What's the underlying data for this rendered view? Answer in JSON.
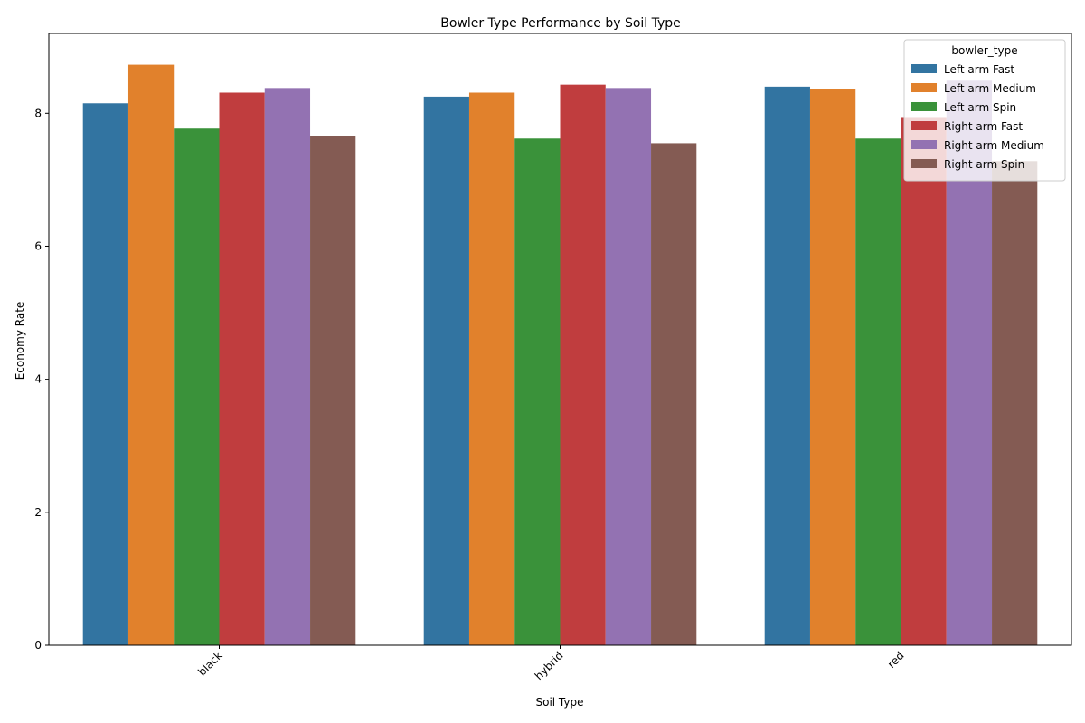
{
  "chart_data": {
    "type": "bar",
    "title": "Bowler Type Performance by Soil Type",
    "xlabel": "Soil Type",
    "ylabel": "Economy Rate",
    "categories": [
      "black",
      "hybrid",
      "red"
    ],
    "ylim": [
      0,
      9.2
    ],
    "yticks": [
      0,
      2,
      4,
      6,
      8
    ],
    "grid": false,
    "legend": {
      "title": "bowler_type",
      "placement": "top-right"
    },
    "series": [
      {
        "name": "Left arm Fast",
        "color": "#3274a1",
        "values": [
          8.15,
          8.25,
          8.4
        ]
      },
      {
        "name": "Left arm Medium",
        "color": "#e1812c",
        "values": [
          8.73,
          8.31,
          8.36
        ]
      },
      {
        "name": "Left arm Spin",
        "color": "#3a923a",
        "values": [
          7.77,
          7.62,
          7.62
        ]
      },
      {
        "name": "Right arm Fast",
        "color": "#c03d3e",
        "values": [
          8.31,
          8.43,
          7.93
        ]
      },
      {
        "name": "Right arm Medium",
        "color": "#9372b2",
        "values": [
          8.38,
          8.38,
          8.49
        ]
      },
      {
        "name": "Right arm Spin",
        "color": "#845b53",
        "values": [
          7.66,
          7.55,
          7.28
        ]
      }
    ]
  }
}
